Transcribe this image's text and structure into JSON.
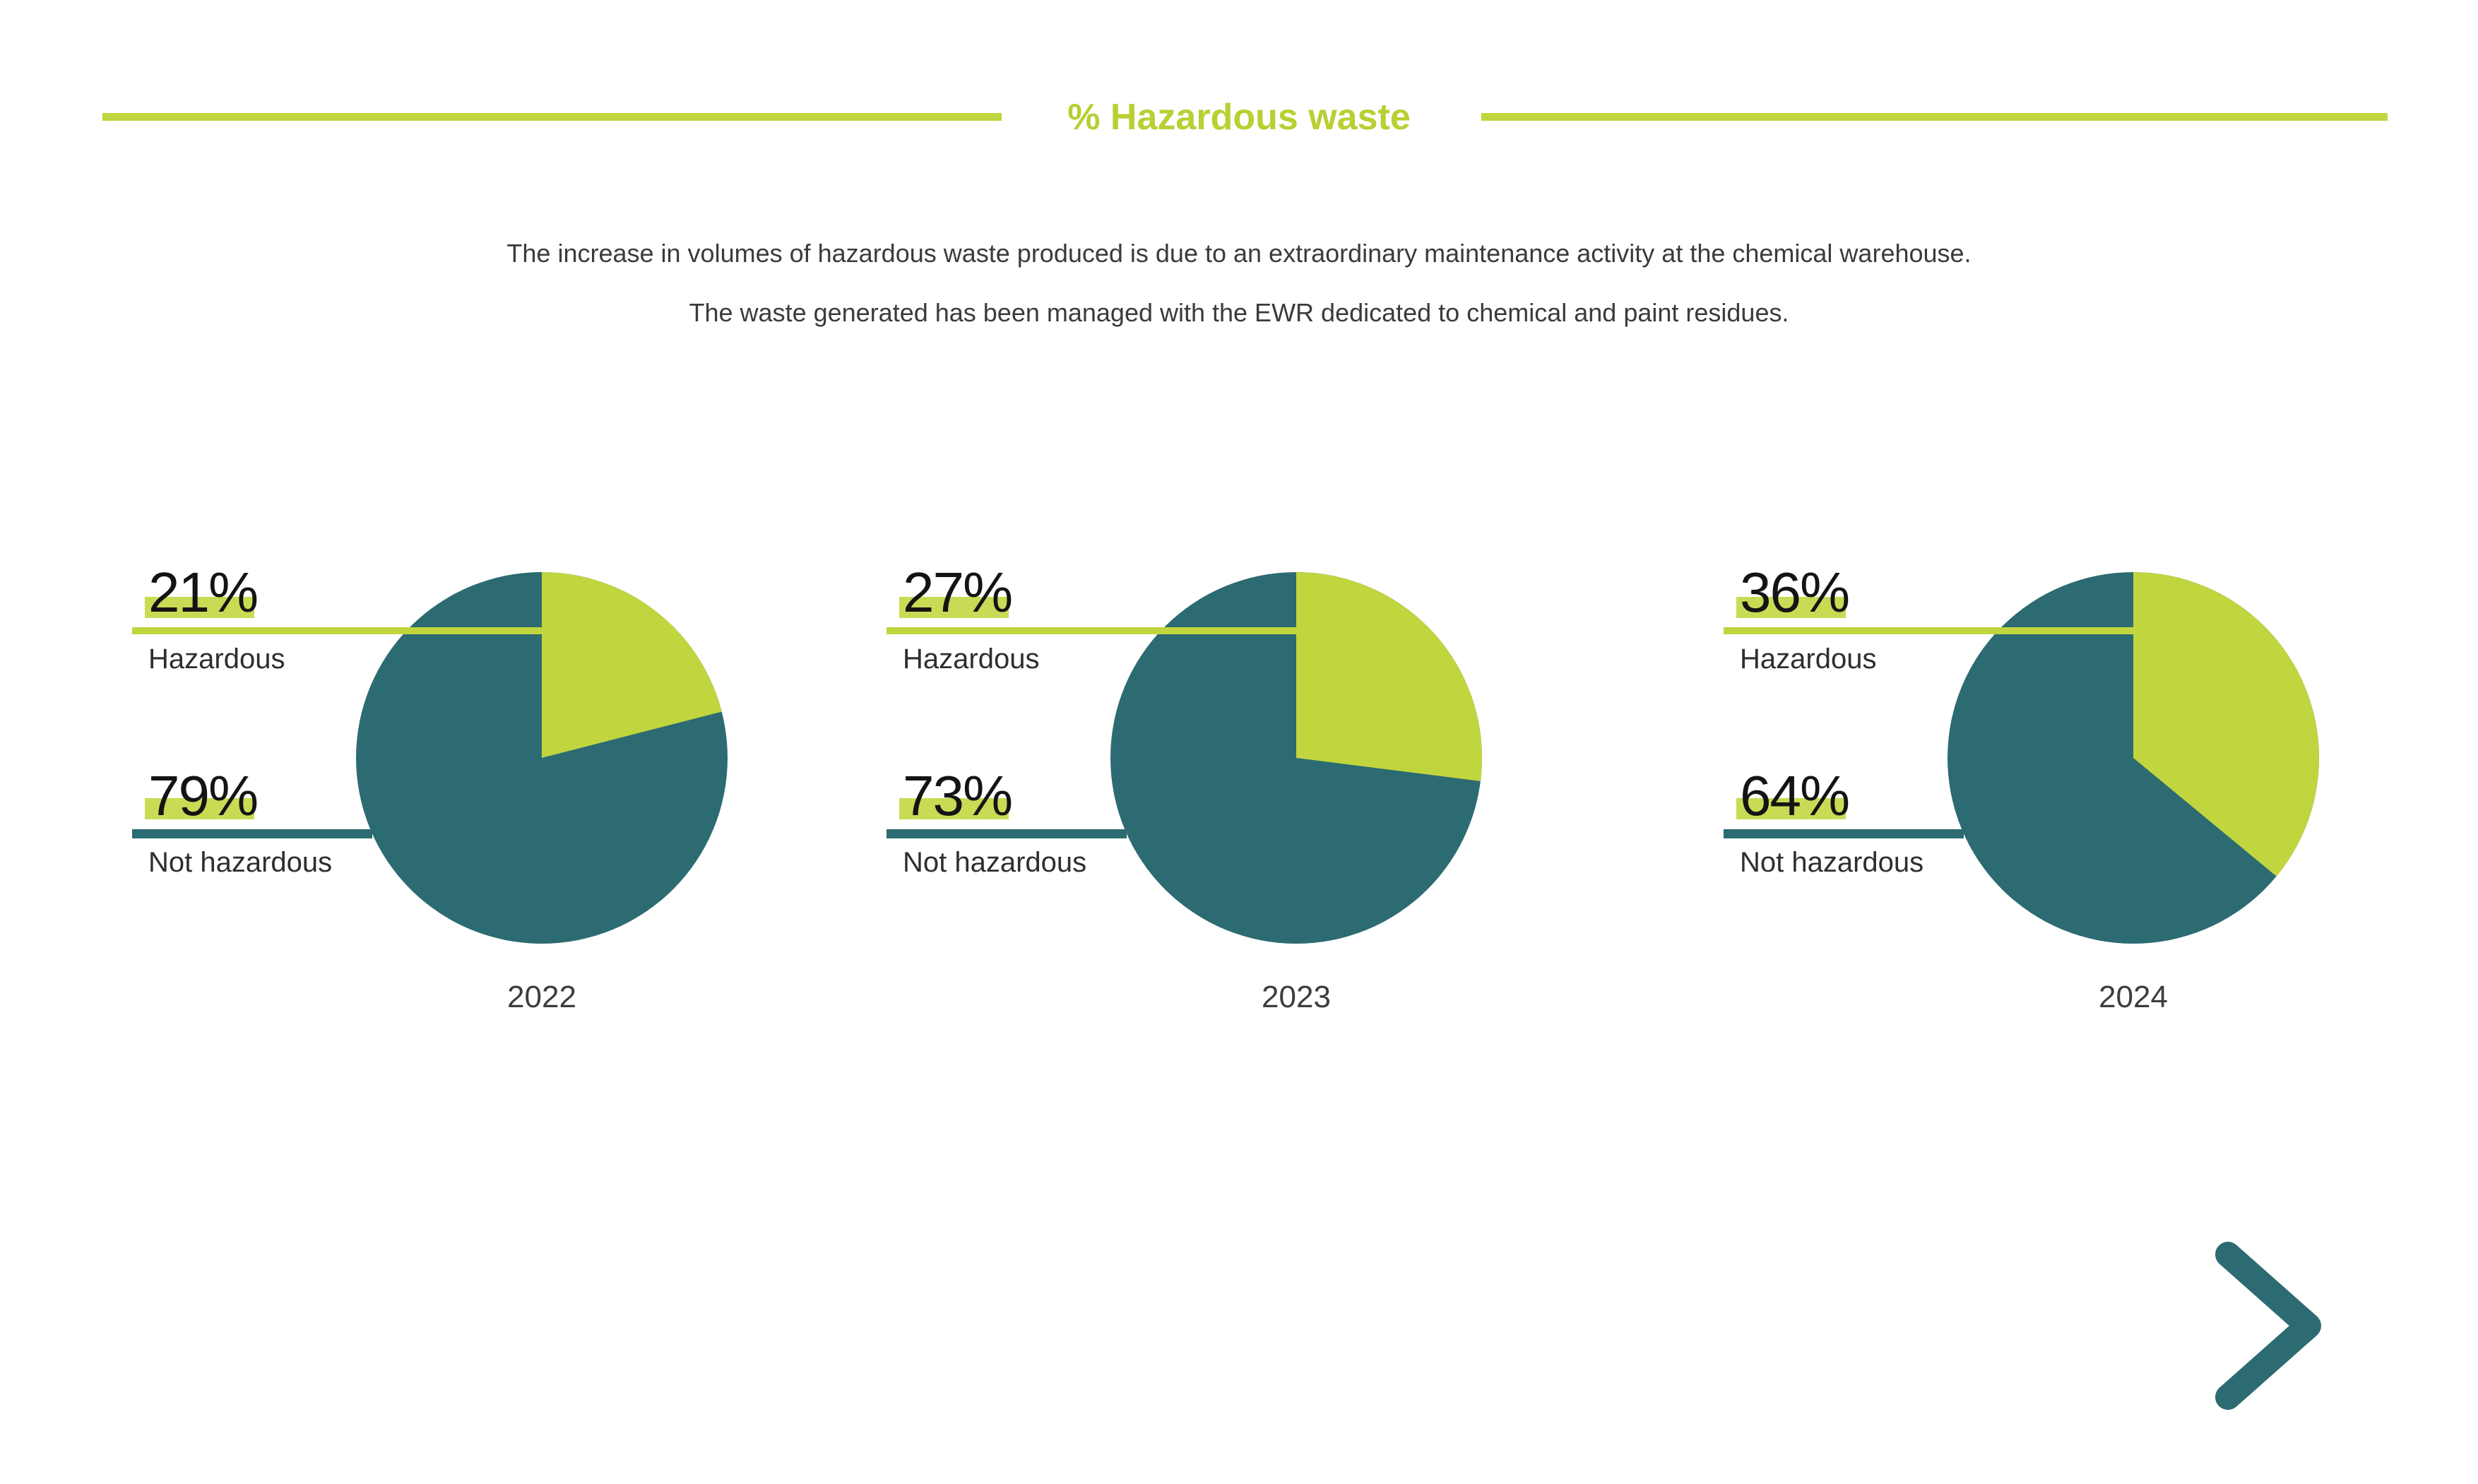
{
  "header": {
    "title": "% Hazardous waste",
    "accent_color": "#c1d53e"
  },
  "subtitle": {
    "line1": "The increase in volumes of hazardous waste produced is due to an extraordinary maintenance activity at the chemical warehouse.",
    "line2": "The waste generated has been managed with the EWR dedicated to chemical and paint residues."
  },
  "colors": {
    "lime": "#c1d53e",
    "teal": "#2c6b71",
    "highlight": "#c9db55",
    "heading_text": "#b9cf33",
    "body_text": "#3b3b3b",
    "label_text": "#2e2e2e",
    "value_text": "#141414",
    "year_text": "#3d3d3d"
  },
  "chart_data": {
    "type": "pie",
    "unit": "%",
    "title": "% Hazardous waste",
    "categories": [
      "Hazardous",
      "Not hazardous"
    ],
    "series_colors": [
      "#c1d53e",
      "#2c6b71"
    ],
    "start_angle_deg": 0,
    "direction": "clockwise",
    "legend_position": "left-callouts",
    "charts": [
      {
        "label": "2022",
        "values": [
          21,
          79
        ],
        "display": [
          "21%",
          "79%"
        ]
      },
      {
        "label": "2023",
        "values": [
          27,
          73
        ],
        "display": [
          "27%",
          "73%"
        ]
      },
      {
        "label": "2024",
        "values": [
          36,
          64
        ],
        "display": [
          "36%",
          "64%"
        ]
      }
    ]
  },
  "nav": {
    "next_label": "Next",
    "chevron_color": "#2c6b71"
  }
}
